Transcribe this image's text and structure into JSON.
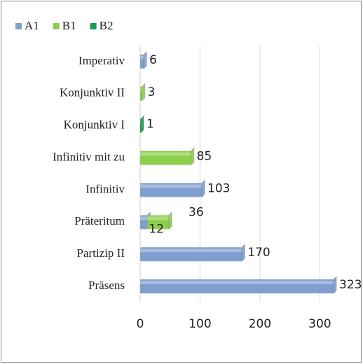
{
  "chart_data": {
    "type": "stacked_barh",
    "categories": [
      "Präsens",
      "Partizip II",
      "Präteritum",
      "Infinitiv",
      "Infinitiv mit zu",
      "Konjunktiv I",
      "Konjunktiv II",
      "Imperativ"
    ],
    "series": [
      {
        "name": "A1",
        "color": "#7f9fd0",
        "values": [
          323,
          170,
          12,
          103,
          null,
          null,
          null,
          6
        ]
      },
      {
        "name": "B1",
        "color": "#8ccf4d",
        "values": [
          null,
          null,
          36,
          null,
          85,
          null,
          3,
          null
        ]
      },
      {
        "name": "B2",
        "color": "#1a9c4c",
        "values": [
          null,
          null,
          null,
          null,
          null,
          1,
          null,
          null
        ]
      }
    ],
    "xlim": [
      0,
      330
    ],
    "xticks": [
      0,
      100,
      200,
      300
    ],
    "grid": true,
    "legend": "top-left"
  }
}
